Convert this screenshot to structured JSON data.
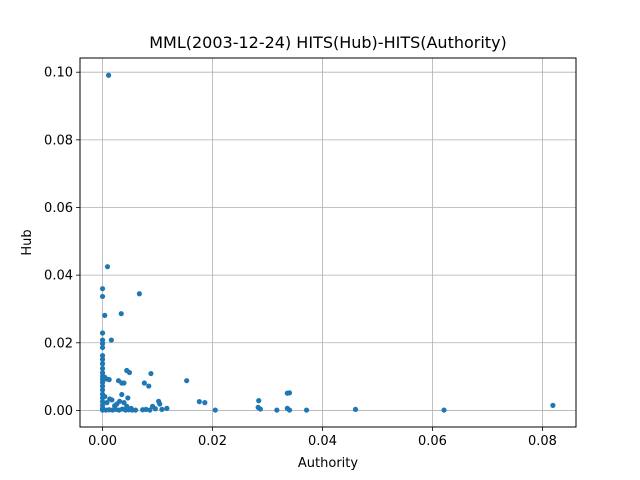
{
  "chart_data": {
    "type": "scatter",
    "title": "MML(2003-12-24) HITS(Hub)-HITS(Authority)",
    "xlabel": "Authority",
    "ylabel": "Hub",
    "xlim": [
      -0.0041,
      0.0861
    ],
    "ylim": [
      -0.0049,
      0.1042
    ],
    "xticks": [
      0.0,
      0.02,
      0.04,
      0.06,
      0.08
    ],
    "xtick_labels": [
      "0.00",
      "0.02",
      "0.04",
      "0.06",
      "0.08"
    ],
    "yticks": [
      0.0,
      0.02,
      0.04,
      0.06,
      0.08,
      0.1
    ],
    "ytick_labels": [
      "0.00",
      "0.02",
      "0.04",
      "0.06",
      "0.08",
      "0.10"
    ],
    "grid": true,
    "marker_color": "#1f77b4",
    "points": [
      [
        0.0011,
        0.0991
      ],
      [
        0.0009,
        0.0425
      ],
      [
        0.0,
        0.036
      ],
      [
        0.0,
        0.0337
      ],
      [
        0.0067,
        0.0345
      ],
      [
        0.0034,
        0.0286
      ],
      [
        0.0004,
        0.0281
      ],
      [
        0.0,
        0.0229
      ],
      [
        0.0,
        0.0208
      ],
      [
        0.0,
        0.0198
      ],
      [
        0.0016,
        0.0208
      ],
      [
        0.0,
        0.0186
      ],
      [
        0.0,
        0.0162
      ],
      [
        0.0,
        0.0151
      ],
      [
        0.0,
        0.0138
      ],
      [
        0.0,
        0.0124
      ],
      [
        0.0,
        0.0111
      ],
      [
        0.0,
        0.0101
      ],
      [
        0.0,
        0.0092
      ],
      [
        0.0,
        0.0083
      ],
      [
        0.0,
        0.0072
      ],
      [
        0.0,
        0.0061
      ],
      [
        0.0,
        0.0048
      ],
      [
        0.0,
        0.0037
      ],
      [
        0.0,
        0.0026
      ],
      [
        0.0,
        0.0015
      ],
      [
        0.0,
        0.0006
      ],
      [
        0.0,
        0.0001
      ],
      [
        0.0004,
        0.0098
      ],
      [
        0.0007,
        0.0093
      ],
      [
        0.0012,
        0.0091
      ],
      [
        0.0004,
        0.0041
      ],
      [
        0.0008,
        0.0023
      ],
      [
        0.0013,
        0.0034
      ],
      [
        0.0017,
        0.0031
      ],
      [
        0.0022,
        0.0014
      ],
      [
        0.0026,
        0.0019
      ],
      [
        0.0006,
        0.0001
      ],
      [
        0.0012,
        0.0002
      ],
      [
        0.0018,
        0.0001
      ],
      [
        0.0024,
        0.0003
      ],
      [
        0.003,
        0.0001
      ],
      [
        0.0036,
        0.0004
      ],
      [
        0.0042,
        0.0001
      ],
      [
        0.0048,
        0.0002
      ],
      [
        0.0054,
        0.0001
      ],
      [
        0.006,
        0.0001
      ],
      [
        0.0029,
        0.0088
      ],
      [
        0.0035,
        0.0081
      ],
      [
        0.0039,
        0.0081
      ],
      [
        0.0044,
        0.0118
      ],
      [
        0.0049,
        0.0112
      ],
      [
        0.0035,
        0.0047
      ],
      [
        0.0031,
        0.0027
      ],
      [
        0.0039,
        0.0023
      ],
      [
        0.0046,
        0.0037
      ],
      [
        0.0044,
        0.0012
      ],
      [
        0.0052,
        0.0006
      ],
      [
        0.0076,
        0.0081
      ],
      [
        0.0084,
        0.0072
      ],
      [
        0.0088,
        0.0109
      ],
      [
        0.0073,
        0.0002
      ],
      [
        0.0079,
        0.0003
      ],
      [
        0.0086,
        0.0001
      ],
      [
        0.0091,
        0.0012
      ],
      [
        0.0096,
        0.0005
      ],
      [
        0.0102,
        0.0027
      ],
      [
        0.0104,
        0.0019
      ],
      [
        0.0108,
        0.0003
      ],
      [
        0.0117,
        0.0006
      ],
      [
        0.0153,
        0.0088
      ],
      [
        0.0176,
        0.0026
      ],
      [
        0.0186,
        0.0023
      ],
      [
        0.0205,
        0.0001
      ],
      [
        0.0284,
        0.0029
      ],
      [
        0.0283,
        0.0009
      ],
      [
        0.0287,
        0.0004
      ],
      [
        0.0317,
        0.0001
      ],
      [
        0.0336,
        0.0051
      ],
      [
        0.034,
        0.0052
      ],
      [
        0.0336,
        0.0006
      ],
      [
        0.034,
        0.0001
      ],
      [
        0.0371,
        0.0001
      ],
      [
        0.046,
        0.0003
      ],
      [
        0.0621,
        0.0001
      ],
      [
        0.0819,
        0.0015
      ]
    ]
  }
}
